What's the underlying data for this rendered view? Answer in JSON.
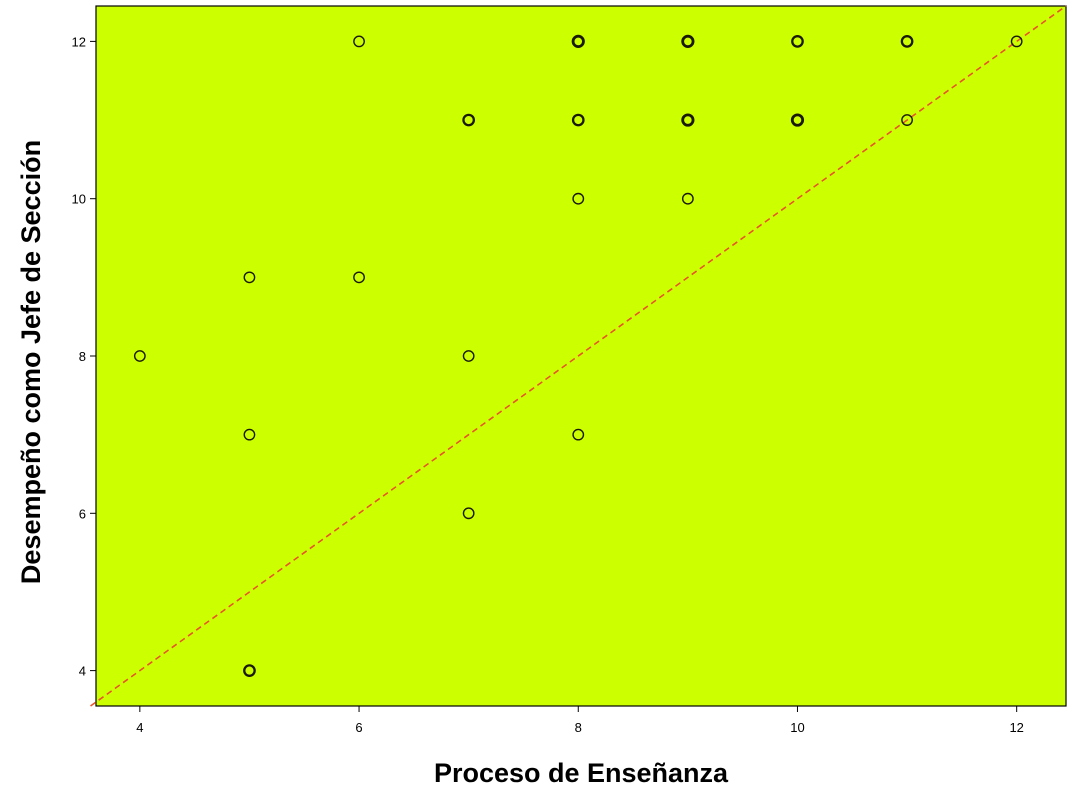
{
  "chart_data": {
    "type": "scatter",
    "xlabel": "Proceso de Enseñanza",
    "ylabel": "Desempeño como Jefe de Sección",
    "xlim": [
      3.6,
      12.45
    ],
    "ylim": [
      3.55,
      12.45
    ],
    "xticks": [
      4,
      6,
      8,
      10,
      12
    ],
    "yticks": [
      4,
      6,
      8,
      10,
      12
    ],
    "grid": false,
    "reference_line": {
      "type": "diagonal",
      "style": "dashed",
      "color": "#e8542b",
      "from": [
        3.55,
        3.55
      ],
      "to": [
        12.45,
        12.45
      ]
    },
    "colors": {
      "plot_background": "#ccff00",
      "marker_edge": "#1a1a00",
      "page_background": "#ffffff"
    },
    "points": [
      {
        "x": 4,
        "y": 8,
        "n": 1
      },
      {
        "x": 5,
        "y": 4,
        "n": 2
      },
      {
        "x": 5,
        "y": 7,
        "n": 1
      },
      {
        "x": 5,
        "y": 9,
        "n": 1
      },
      {
        "x": 6,
        "y": 9,
        "n": 1
      },
      {
        "x": 6,
        "y": 12,
        "n": 1
      },
      {
        "x": 7,
        "y": 6,
        "n": 1
      },
      {
        "x": 7,
        "y": 8,
        "n": 1
      },
      {
        "x": 7,
        "y": 11,
        "n": 2
      },
      {
        "x": 8,
        "y": 7,
        "n": 1
      },
      {
        "x": 8,
        "y": 10,
        "n": 1
      },
      {
        "x": 8,
        "y": 11,
        "n": 2
      },
      {
        "x": 8,
        "y": 12,
        "n": 3
      },
      {
        "x": 9,
        "y": 10,
        "n": 1
      },
      {
        "x": 9,
        "y": 11,
        "n": 3
      },
      {
        "x": 9,
        "y": 12,
        "n": 3
      },
      {
        "x": 10,
        "y": 11,
        "n": 3
      },
      {
        "x": 10,
        "y": 12,
        "n": 2
      },
      {
        "x": 11,
        "y": 11,
        "n": 1
      },
      {
        "x": 11,
        "y": 12,
        "n": 2
      },
      {
        "x": 12,
        "y": 12,
        "n": 1
      }
    ]
  }
}
